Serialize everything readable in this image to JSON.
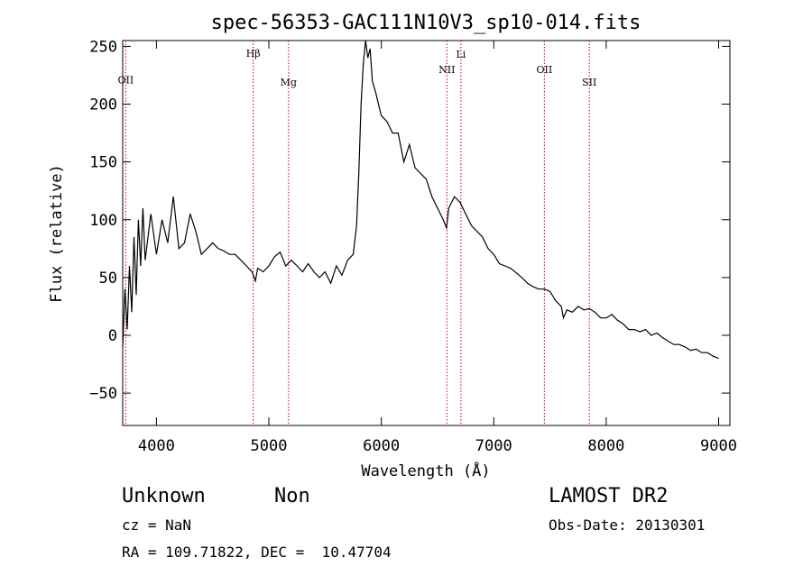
{
  "chart_data": {
    "type": "line",
    "title": "spec-56353-GAC111N10V3_sp10-014.fits",
    "xlabel": "Wavelength (Å)",
    "ylabel": "Flux (relative)",
    "xlim": [
      3700,
      9100
    ],
    "ylim": [
      -78,
      255
    ],
    "xticks": [
      4000,
      5000,
      6000,
      7000,
      8000,
      9000
    ],
    "yticks": [
      -50,
      0,
      50,
      100,
      150,
      200,
      250
    ],
    "grid": false,
    "line_color": "#000000",
    "marker_color": "#cc0000",
    "series": [
      {
        "x": [
          3700,
          3720,
          3740,
          3760,
          3780,
          3800,
          3820,
          3840,
          3860,
          3880,
          3900,
          3950,
          4000,
          4050,
          4100,
          4150,
          4200,
          4250,
          4300,
          4350,
          4400,
          4450,
          4500,
          4550,
          4600,
          4650,
          4700,
          4750,
          4800,
          4850,
          4880,
          4900,
          4950,
          5000,
          5050,
          5100,
          5150,
          5200,
          5250,
          5300,
          5350,
          5400,
          5450,
          5500,
          5550,
          5600,
          5650,
          5700,
          5750,
          5780,
          5800,
          5820,
          5840,
          5860,
          5880,
          5900,
          5920,
          5950,
          6000,
          6050,
          6100,
          6150,
          6200,
          6250,
          6300,
          6350,
          6400,
          6450,
          6500,
          6550,
          6580,
          6600,
          6650,
          6700,
          6750,
          6800,
          6850,
          6900,
          6950,
          7000,
          7050,
          7100,
          7150,
          7200,
          7250,
          7300,
          7350,
          7400,
          7450,
          7500,
          7550,
          7600,
          7620,
          7650,
          7700,
          7750,
          7800,
          7850,
          7900,
          7950,
          8000,
          8050,
          8100,
          8150,
          8200,
          8250,
          8300,
          8350,
          8400,
          8450,
          8500,
          8550,
          8600,
          8650,
          8700,
          8750,
          8800,
          8850,
          8900,
          8950,
          9000
        ],
        "y": [
          -10,
          40,
          5,
          60,
          20,
          85,
          35,
          100,
          60,
          110,
          65,
          105,
          70,
          100,
          80,
          120,
          75,
          80,
          105,
          90,
          70,
          75,
          80,
          75,
          73,
          70,
          70,
          65,
          60,
          55,
          47,
          58,
          55,
          60,
          68,
          72,
          60,
          65,
          60,
          55,
          62,
          55,
          50,
          55,
          45,
          60,
          52,
          65,
          70,
          95,
          140,
          200,
          235,
          255,
          240,
          248,
          220,
          210,
          190,
          185,
          175,
          175,
          150,
          165,
          145,
          140,
          135,
          120,
          110,
          100,
          93,
          110,
          120,
          115,
          105,
          95,
          90,
          85,
          75,
          70,
          62,
          60,
          58,
          54,
          50,
          45,
          42,
          40,
          40,
          38,
          30,
          25,
          15,
          22,
          20,
          25,
          22,
          23,
          20,
          15,
          15,
          18,
          13,
          10,
          5,
          5,
          3,
          5,
          0,
          2,
          -2,
          -5,
          -8,
          -8,
          -10,
          -13,
          -12,
          -15,
          -15,
          -18,
          -20
        ]
      }
    ],
    "lines": [
      {
        "x": 3727,
        "label": "OII",
        "label_y": 218
      },
      {
        "x": 4861,
        "label": "Hβ",
        "label_y": 241
      },
      {
        "x": 5175,
        "label": "Mg",
        "label_y": 216
      },
      {
        "x": 6583,
        "label": "NII",
        "label_y": 227
      },
      {
        "x": 6708,
        "label": "Li",
        "label_y": 240
      },
      {
        "x": 7450,
        "label": "OII",
        "label_y": 227
      },
      {
        "x": 7850,
        "label": "SII",
        "label_y": 216
      }
    ]
  },
  "footer": {
    "object_class": "Unknown",
    "subclass": "Non",
    "survey": "LAMOST DR2",
    "cz": "cz = NaN",
    "obs_date": "Obs-Date: 20130301",
    "coords": "RA = 109.71822, DEC =  10.47704"
  }
}
